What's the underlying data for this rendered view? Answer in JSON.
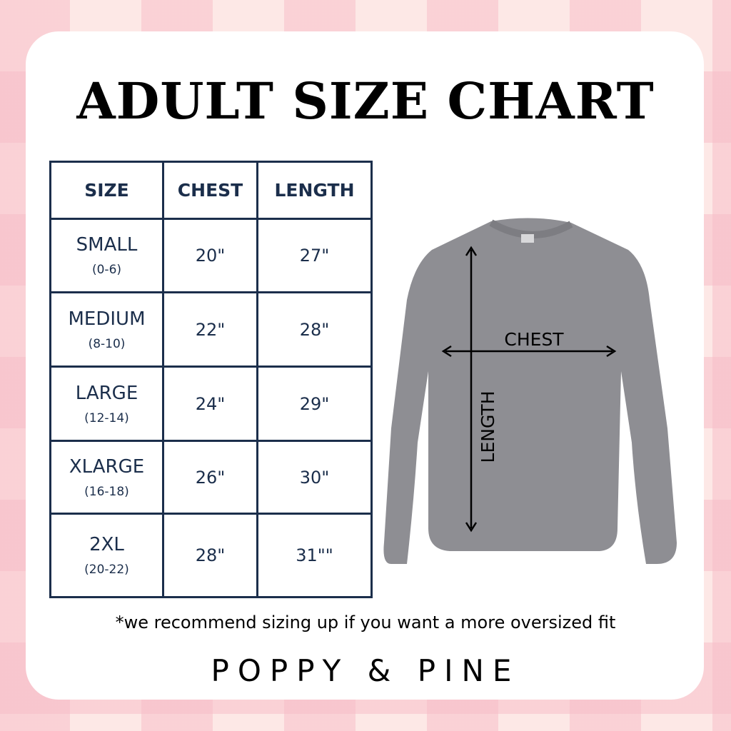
{
  "title": "ADULT SIZE CHART",
  "table": {
    "headers": [
      "SIZE",
      "CHEST",
      "LENGTH"
    ],
    "rows": [
      {
        "size": "SMALL",
        "range": "(0-6)",
        "chest": "20\"",
        "length": "27\""
      },
      {
        "size": "MEDIUM",
        "range": "(8-10)",
        "chest": "22\"",
        "length": "28\""
      },
      {
        "size": "LARGE",
        "range": "(12-14)",
        "chest": "24\"",
        "length": "29\""
      },
      {
        "size": "XLARGE",
        "range": "(16-18)",
        "chest": "26\"",
        "length": "30\""
      },
      {
        "size": "2XL",
        "range": "(20-22)",
        "chest": "28\"",
        "length": "31\"\""
      }
    ]
  },
  "diagram": {
    "chest_label": "CHEST",
    "length_label": "LENGTH",
    "shirt_color": "#8e8e93"
  },
  "note": "*we recommend sizing up if you want a more oversized fit",
  "brand": "POPPY & PINE",
  "colors": {
    "navy": "#1b2e4b",
    "pink": "#f7bec8"
  }
}
